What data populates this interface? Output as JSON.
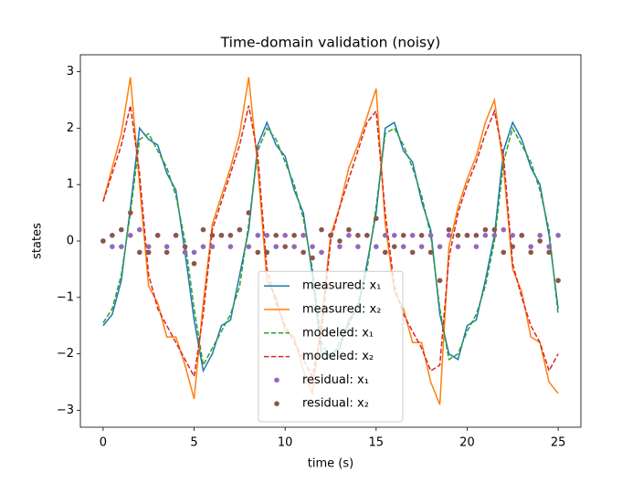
{
  "chart_data": {
    "type": "multi",
    "title": "Time-domain validation (noisy)",
    "xlabel": "time (s)",
    "ylabel": "states",
    "xlim": [
      -1.25,
      26.25
    ],
    "ylim": [
      -3.3,
      3.3
    ],
    "xticks": [
      0,
      5,
      10,
      15,
      20,
      25
    ],
    "yticks": [
      {
        "value": -3,
        "label": "−3"
      },
      {
        "value": -2,
        "label": "−2"
      },
      {
        "value": -1,
        "label": "−1"
      },
      0,
      1,
      2,
      3
    ],
    "legend": "lower center",
    "x": [
      0,
      0.5,
      1,
      1.5,
      2,
      2.5,
      3,
      3.5,
      4,
      4.5,
      5,
      5.5,
      6,
      6.5,
      7,
      7.5,
      8,
      8.5,
      9,
      9.5,
      10,
      10.5,
      11,
      11.5,
      12,
      12.5,
      13,
      13.5,
      14,
      14.5,
      15,
      15.5,
      16,
      16.5,
      17,
      17.5,
      18,
      18.5,
      19,
      19.5,
      20,
      20.5,
      21,
      21.5,
      22,
      22.5,
      23,
      23.5,
      24,
      24.5,
      25
    ],
    "series": [
      {
        "name": "measured: x₁",
        "type": "line",
        "style": "solid",
        "color": "#1f77b4",
        "values": [
          -1.5,
          -1.3,
          -0.7,
          0.6,
          2.0,
          1.8,
          1.7,
          1.2,
          0.9,
          -0.2,
          -1.4,
          -2.3,
          -2.0,
          -1.5,
          -1.4,
          -0.6,
          0.2,
          1.7,
          2.1,
          1.7,
          1.5,
          0.9,
          0.5,
          -0.6,
          -2.0,
          -2.0,
          -1.9,
          -1.4,
          -1.2,
          -0.4,
          0.5,
          2.0,
          2.1,
          1.6,
          1.4,
          0.7,
          0.2,
          -1.3,
          -2.0,
          -2.1,
          -1.5,
          -1.4,
          -0.7,
          0.1,
          1.6,
          2.1,
          1.8,
          1.3,
          1.0,
          0.1,
          -1.2
        ]
      },
      {
        "name": "measured: x₂",
        "type": "line",
        "style": "solid",
        "color": "#ff7f0e",
        "values": [
          0.7,
          1.3,
          1.9,
          2.9,
          1.0,
          -0.8,
          -1.1,
          -1.7,
          -1.7,
          -2.2,
          -2.8,
          -1.1,
          0.3,
          0.8,
          1.3,
          1.9,
          2.9,
          1.3,
          -0.7,
          -1.0,
          -1.6,
          -1.7,
          -2.3,
          -2.7,
          -1.4,
          0.1,
          0.6,
          1.3,
          1.7,
          2.2,
          2.7,
          0.3,
          -0.9,
          -1.2,
          -1.8,
          -1.8,
          -2.5,
          -2.9,
          -0.1,
          0.6,
          1.1,
          1.5,
          2.1,
          2.5,
          1.3,
          -0.5,
          -0.9,
          -1.7,
          -1.8,
          -2.5,
          -2.7
        ]
      },
      {
        "name": "modeled: x₁",
        "type": "line",
        "style": "dashed",
        "color": "#2ca02c",
        "values": [
          -1.45,
          -1.2,
          -0.6,
          0.5,
          1.8,
          1.9,
          1.6,
          1.3,
          0.8,
          0.0,
          -1.2,
          -2.2,
          -1.9,
          -1.6,
          -1.3,
          -0.8,
          0.3,
          1.6,
          2.0,
          1.8,
          1.4,
          1.0,
          0.4,
          -0.5,
          -1.8,
          -2.1,
          -1.8,
          -1.5,
          -1.1,
          -0.5,
          0.6,
          1.9,
          2.0,
          1.7,
          1.3,
          0.8,
          0.1,
          -1.2,
          -2.1,
          -2.0,
          -1.6,
          -1.3,
          -0.8,
          0.0,
          1.4,
          2.0,
          1.7,
          1.4,
          0.9,
          0.2,
          -1.3
        ]
      },
      {
        "name": "modeled: x₂",
        "type": "line",
        "style": "dashed",
        "color": "#d62728",
        "values": [
          0.7,
          1.2,
          1.7,
          2.4,
          1.2,
          -0.6,
          -1.2,
          -1.5,
          -1.8,
          -2.1,
          -2.4,
          -1.3,
          0.2,
          0.7,
          1.2,
          1.7,
          2.4,
          1.5,
          -0.5,
          -1.1,
          -1.5,
          -1.8,
          -2.1,
          -2.4,
          -1.6,
          0.0,
          0.6,
          1.1,
          1.6,
          2.1,
          2.3,
          0.5,
          -0.8,
          -1.3,
          -1.6,
          -1.9,
          -2.3,
          -2.2,
          -0.3,
          0.5,
          1.0,
          1.4,
          1.9,
          2.3,
          1.5,
          -0.4,
          -1.0,
          -1.5,
          -1.8,
          -2.3,
          -2.0
        ]
      },
      {
        "name": "residual: x₁",
        "type": "scatter",
        "style": "marker",
        "color": "#9467bd",
        "values": [
          0.0,
          -0.1,
          -0.1,
          0.1,
          0.2,
          -0.1,
          0.1,
          -0.1,
          0.1,
          -0.2,
          -0.2,
          -0.1,
          -0.1,
          0.1,
          -0.1,
          0.2,
          -0.1,
          0.1,
          0.1,
          -0.1,
          0.1,
          -0.1,
          0.1,
          -0.1,
          -0.2,
          0.1,
          -0.1,
          0.1,
          -0.1,
          0.1,
          -0.1,
          0.1,
          0.1,
          -0.1,
          0.1,
          -0.1,
          0.1,
          -0.1,
          0.1,
          -0.1,
          0.1,
          -0.1,
          0.1,
          0.1,
          0.2,
          0.1,
          0.1,
          -0.1,
          0.1,
          -0.1,
          0.1
        ]
      },
      {
        "name": "residual: x₂",
        "type": "scatter",
        "style": "marker",
        "color": "#8c564b",
        "values": [
          0.0,
          0.1,
          0.2,
          0.5,
          -0.2,
          -0.2,
          0.1,
          -0.2,
          0.1,
          -0.1,
          -0.4,
          0.2,
          0.1,
          0.1,
          0.1,
          0.2,
          0.5,
          -0.2,
          -0.2,
          0.1,
          -0.1,
          0.1,
          -0.2,
          -0.3,
          0.2,
          0.1,
          0.0,
          0.2,
          0.1,
          0.1,
          0.4,
          -0.2,
          -0.1,
          0.1,
          -0.2,
          0.1,
          -0.2,
          -0.7,
          0.2,
          0.1,
          0.1,
          0.1,
          0.2,
          0.2,
          -0.2,
          -0.1,
          0.1,
          -0.2,
          0.0,
          -0.2,
          -0.7
        ]
      }
    ]
  }
}
